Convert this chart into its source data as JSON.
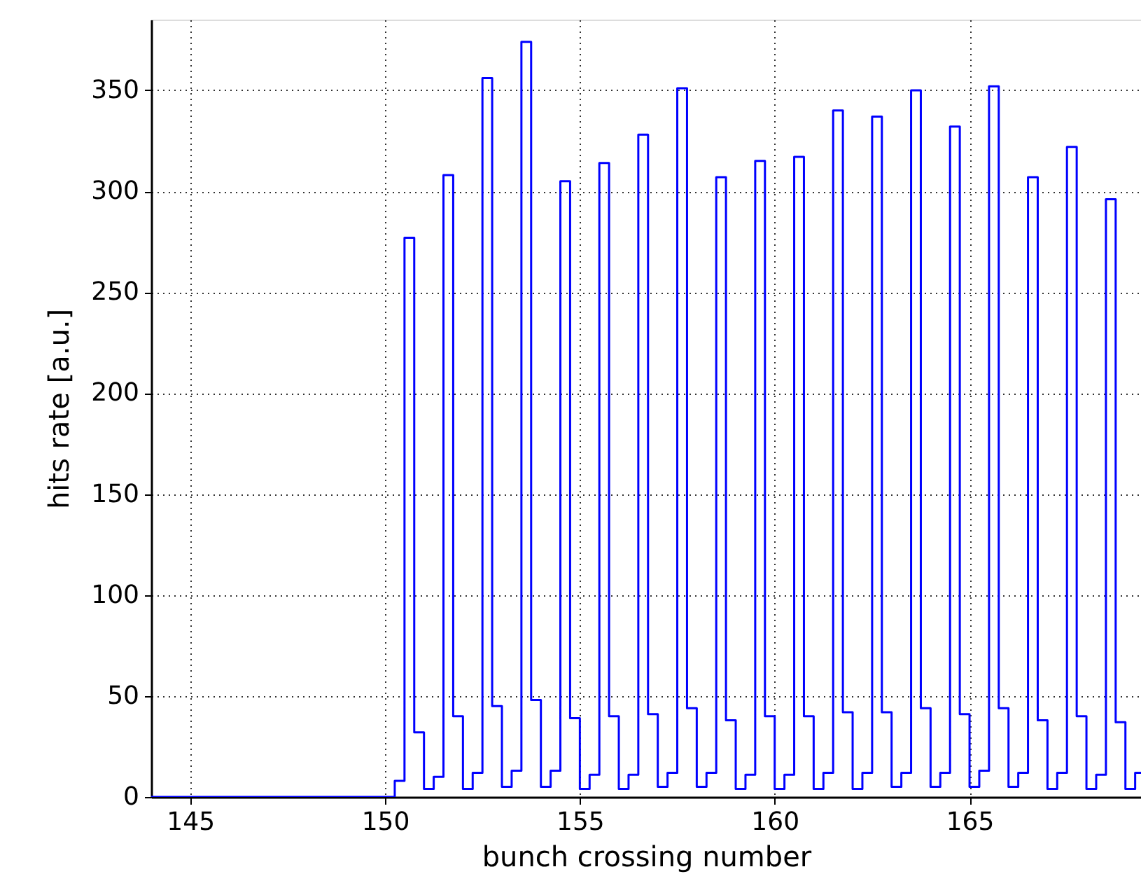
{
  "chart_data": {
    "type": "step",
    "xlabel": "bunch crossing number",
    "ylabel": "hits rate [a.u.]",
    "x": [
      144,
      150.25,
      150.5,
      150.75,
      151,
      151.25,
      151.5,
      151.75,
      152,
      152.25,
      152.5,
      152.75,
      153,
      153.25,
      153.5,
      153.75,
      154,
      154.25,
      154.5,
      154.75,
      155,
      155.25,
      155.5,
      155.75,
      156,
      156.25,
      156.5,
      156.75,
      157,
      157.25,
      157.5,
      157.75,
      158,
      158.25,
      158.5,
      158.75,
      159,
      159.25,
      159.5,
      159.75,
      160,
      160.25,
      160.5,
      160.75,
      161,
      161.25,
      161.5,
      161.75,
      162,
      162.25,
      162.5,
      162.75,
      163,
      163.25,
      163.5,
      163.75,
      164,
      164.25,
      164.5,
      164.75,
      165,
      165.25,
      165.5,
      165.75,
      166,
      166.25,
      166.5,
      166.75,
      167,
      167.25,
      167.5,
      167.75,
      168,
      168.25,
      168.5,
      168.75,
      169,
      169.25,
      169.4
    ],
    "series": [
      {
        "color": "#0000ff",
        "values": [
          0,
          8,
          277,
          32,
          4,
          10,
          308,
          40,
          4,
          12,
          356,
          45,
          5,
          13,
          374,
          48,
          5,
          13,
          305,
          39,
          4,
          11,
          314,
          40,
          4,
          11,
          328,
          41,
          5,
          12,
          351,
          44,
          5,
          12,
          307,
          38,
          4,
          11,
          315,
          40,
          4,
          11,
          317,
          40,
          4,
          12,
          340,
          42,
          4,
          12,
          337,
          42,
          5,
          12,
          350,
          44,
          5,
          12,
          332,
          41,
          5,
          13,
          352,
          44,
          5,
          12,
          307,
          38,
          4,
          12,
          322,
          40,
          4,
          11,
          296,
          37,
          4,
          12,
          12
        ]
      }
    ],
    "xlim": [
      144,
      169.4
    ],
    "ylim": [
      0,
      385
    ],
    "xticks": [
      145,
      150,
      155,
      160,
      165
    ],
    "yticks": [
      0,
      50,
      100,
      150,
      200,
      250,
      300,
      350
    ],
    "grid": true,
    "line_style": "solid"
  }
}
